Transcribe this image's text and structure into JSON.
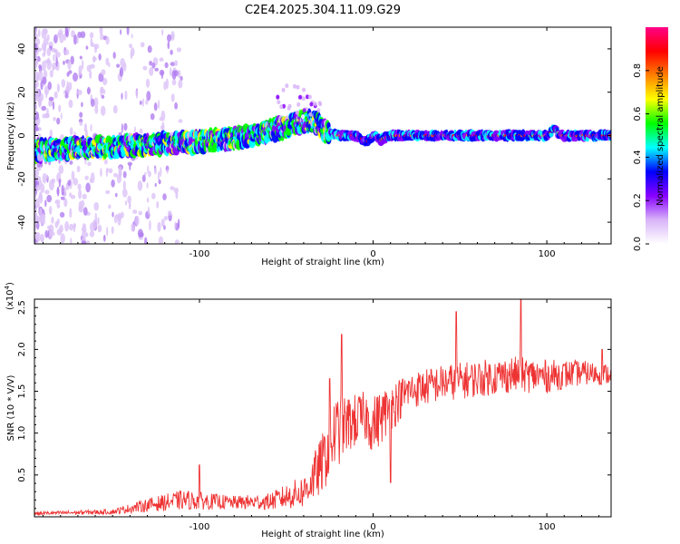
{
  "title": "C2E4.2025.304.11.09.G29",
  "chart_data": [
    {
      "type": "heatmap",
      "name": "spectrogram",
      "xlabel": "Height of straight line (km)",
      "ylabel": "Frequency (Hz)",
      "xlim": [
        -195,
        137
      ],
      "ylim": [
        -50,
        50
      ],
      "xticks": [
        -100,
        0,
        100
      ],
      "xtick_labels": [
        "-100",
        "0",
        "100"
      ],
      "yticks": [
        -40,
        -20,
        0,
        20,
        40
      ],
      "ytick_labels": [
        "-40",
        "-20",
        "0",
        "20",
        "40"
      ],
      "ridge": {
        "x": [
          -195,
          -150,
          -100,
          -70,
          -50,
          -38,
          -33,
          -28,
          -20,
          -10,
          -4,
          0,
          4,
          10,
          100,
          104,
          108,
          137
        ],
        "y": [
          -7,
          -5,
          -3,
          0,
          4,
          7,
          6,
          2,
          0,
          0,
          -3,
          0,
          -2,
          0,
          0,
          3,
          0,
          0
        ],
        "description_values": "centre frequency of the dominant signal band in Hz"
      },
      "colorbar": {
        "label": "Normalized spectral amplitude",
        "range": [
          0,
          1
        ],
        "ticks": [
          0.0,
          0.2,
          0.4,
          0.6,
          0.8
        ],
        "tick_labels": [
          "0.0",
          "0.2",
          "0.4",
          "0.6",
          "0.8"
        ],
        "colormap": [
          "#ffffff",
          "#d8b4f8",
          "#8800ff",
          "#0000ff",
          "#00ffff",
          "#00ff00",
          "#ffff00",
          "#ff8000",
          "#ff0000",
          "#ff0088"
        ]
      }
    },
    {
      "type": "line",
      "name": "snr",
      "xlabel": "Height of straight line (km)",
      "ylabel": "SNR (10 * V/V)",
      "scale_label": "(x10",
      "scale_exp": "4",
      "scale_close": ")",
      "xlim": [
        -195,
        137
      ],
      "ylim": [
        0,
        2.6
      ],
      "xticks": [
        -100,
        0,
        100
      ],
      "xtick_labels": [
        "-100",
        "0",
        "100"
      ],
      "yticks": [
        0.5,
        1.0,
        1.5,
        2.0,
        2.5
      ],
      "ytick_labels": [
        "0.5",
        "1.0",
        "1.5",
        "2.0",
        "2.5"
      ],
      "color": "#ee3333",
      "envelope": {
        "x": [
          -195,
          -150,
          -130,
          -110,
          -80,
          -60,
          -40,
          -30,
          -22,
          -15,
          -5,
          0,
          10,
          20,
          40,
          60,
          80,
          100,
          120,
          137
        ],
        "y": [
          0.04,
          0.06,
          0.14,
          0.2,
          0.17,
          0.18,
          0.3,
          0.6,
          1.0,
          1.1,
          1.2,
          1.1,
          1.3,
          1.5,
          1.6,
          1.65,
          1.7,
          1.68,
          1.72,
          1.7
        ],
        "spread": [
          0.02,
          0.03,
          0.08,
          0.12,
          0.08,
          0.1,
          0.2,
          0.35,
          0.45,
          0.35,
          0.3,
          0.35,
          0.3,
          0.22,
          0.22,
          0.22,
          0.22,
          0.2,
          0.15,
          0.12
        ]
      },
      "peaks": [
        {
          "x": -100,
          "y": 0.62
        },
        {
          "x": -25,
          "y": 1.65
        },
        {
          "x": -18,
          "y": 2.18
        },
        {
          "x": 10,
          "y": 0.41
        },
        {
          "x": 48,
          "y": 2.45
        },
        {
          "x": 85,
          "y": 2.6
        },
        {
          "x": 132,
          "y": 2.0
        }
      ]
    }
  ]
}
